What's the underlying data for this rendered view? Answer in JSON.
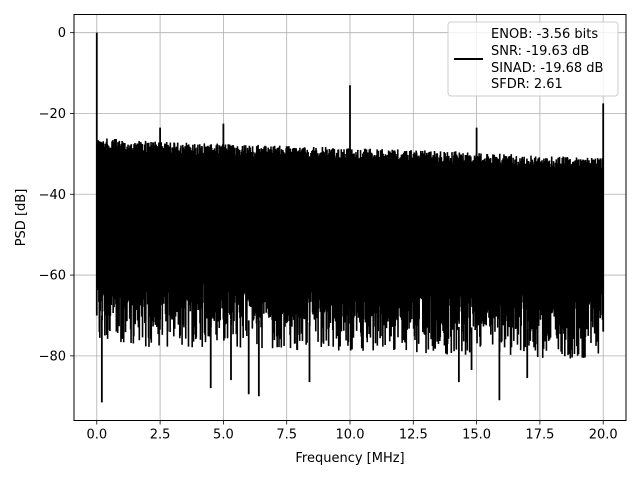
{
  "chart_data": {
    "type": "line",
    "xlabel": "Frequency [MHz]",
    "ylabel": "PSD [dB]",
    "xlim": [
      -0.9,
      20.9
    ],
    "ylim": [
      -96,
      4.5
    ],
    "xticks": [
      0.0,
      2.5,
      5.0,
      7.5,
      10.0,
      12.5,
      15.0,
      17.5,
      20.0
    ],
    "xtick_labels": [
      "0.0",
      "2.5",
      "5.0",
      "7.5",
      "10.0",
      "12.5",
      "15.0",
      "17.5",
      "20.0"
    ],
    "yticks": [
      0,
      -20,
      -40,
      -60,
      -80
    ],
    "ytick_labels": [
      "0",
      "−20",
      "−40",
      "−60",
      "−80"
    ],
    "grid": true,
    "legend_position": "top-right",
    "series_color": "#000000",
    "legend_lines": [
      "ENOB: -3.56 bits",
      "SNR: -19.63 dB",
      "SINAD: -19.68 dB",
      "SFDR: 2.61"
    ],
    "noise_floor": {
      "x": [
        0.0,
        2.5,
        5.0,
        7.5,
        10.0,
        12.5,
        15.0,
        17.5,
        20.0
      ],
      "upper": [
        -26,
        -27,
        -27.5,
        -28,
        -28.5,
        -29,
        -29.5,
        -30.5,
        -31
      ],
      "lower": [
        -70,
        -71,
        -71,
        -71.5,
        -72,
        -72.5,
        -73,
        -73.5,
        -74
      ]
    },
    "peaks": [
      {
        "x": 0.0,
        "y": 0
      },
      {
        "x": 2.5,
        "y": -23.5
      },
      {
        "x": 5.0,
        "y": -22.5
      },
      {
        "x": 10.0,
        "y": -13
      },
      {
        "x": 15.0,
        "y": -23.5
      },
      {
        "x": 20.0,
        "y": -17.5
      }
    ],
    "dips": [
      {
        "x": 0.2,
        "y": -91.5
      },
      {
        "x": 4.5,
        "y": -88
      },
      {
        "x": 5.3,
        "y": -86
      },
      {
        "x": 6.0,
        "y": -89.5
      },
      {
        "x": 6.4,
        "y": -90
      },
      {
        "x": 8.4,
        "y": -86.5
      },
      {
        "x": 14.3,
        "y": -86.5
      },
      {
        "x": 14.8,
        "y": -83.5
      },
      {
        "x": 15.9,
        "y": -91
      },
      {
        "x": 17.0,
        "y": -85.5
      }
    ]
  }
}
